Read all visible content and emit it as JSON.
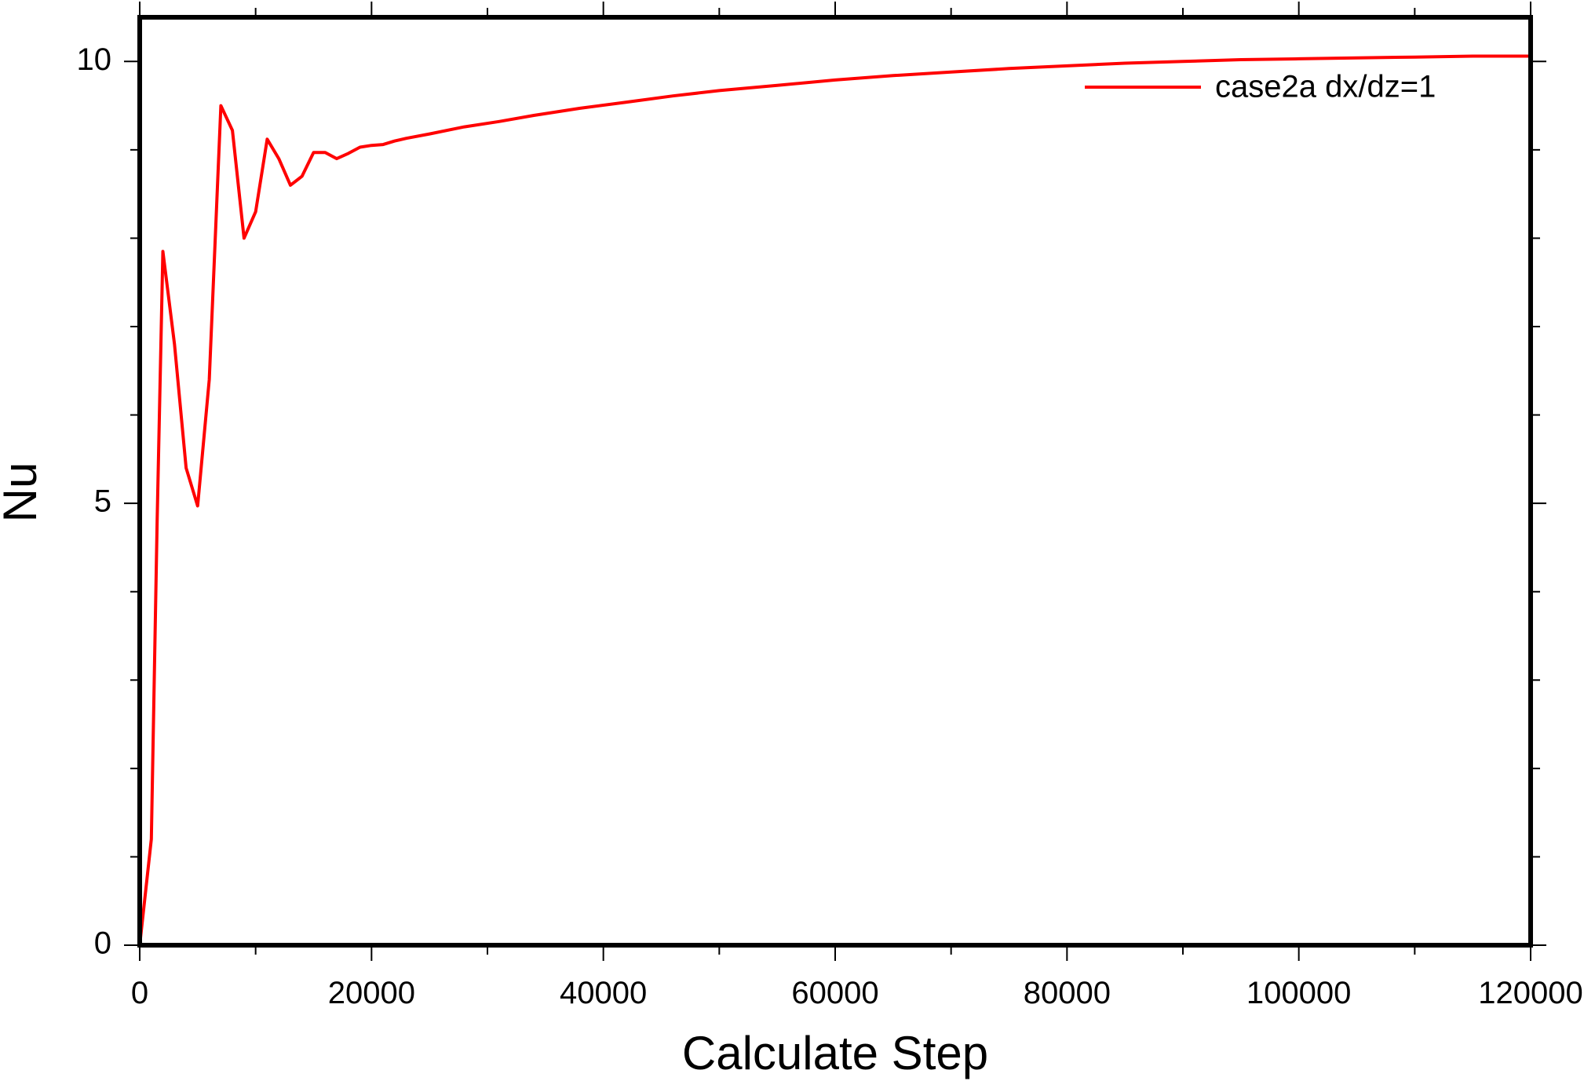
{
  "chart_data": {
    "type": "line",
    "title": "",
    "xlabel": "Calculate Step",
    "ylabel": "Nu",
    "xlim": [
      0,
      120000
    ],
    "ylim": [
      0,
      10.5
    ],
    "x_ticks": [
      0,
      20000,
      40000,
      60000,
      80000,
      100000,
      120000
    ],
    "x_tick_labels": [
      "0",
      "20000",
      "40000",
      "60000",
      "80000",
      "100000",
      "120000"
    ],
    "y_ticks": [
      0,
      5,
      10
    ],
    "y_tick_labels": [
      "0",
      "5",
      "10"
    ],
    "x_minor_step": 10000,
    "y_minor_step": 1,
    "grid": false,
    "legend_position": "top-right",
    "series": [
      {
        "name": "case2a dx/dz=1",
        "color": "#ff0000",
        "x": [
          0,
          1000,
          1500,
          2000,
          3000,
          4000,
          5000,
          6000,
          7000,
          8000,
          9000,
          10000,
          11000,
          12000,
          13000,
          14000,
          15000,
          16000,
          17000,
          18000,
          19000,
          20000,
          21000,
          22000,
          23000,
          25000,
          28000,
          31000,
          34000,
          38000,
          42000,
          46000,
          50000,
          55000,
          60000,
          65000,
          70000,
          75000,
          80000,
          85000,
          90000,
          95000,
          100000,
          105000,
          110000,
          115000,
          120000
        ],
        "y": [
          0,
          1.2,
          4.8,
          7.85,
          6.8,
          5.4,
          4.97,
          6.4,
          9.5,
          9.22,
          8.0,
          8.3,
          9.12,
          8.9,
          8.6,
          8.7,
          8.97,
          8.97,
          8.9,
          8.96,
          9.03,
          9.05,
          9.06,
          9.1,
          9.13,
          9.18,
          9.26,
          9.32,
          9.39,
          9.47,
          9.54,
          9.61,
          9.67,
          9.73,
          9.79,
          9.84,
          9.88,
          9.92,
          9.95,
          9.98,
          10.0,
          10.02,
          10.03,
          10.04,
          10.05,
          10.06,
          10.06
        ]
      }
    ]
  }
}
